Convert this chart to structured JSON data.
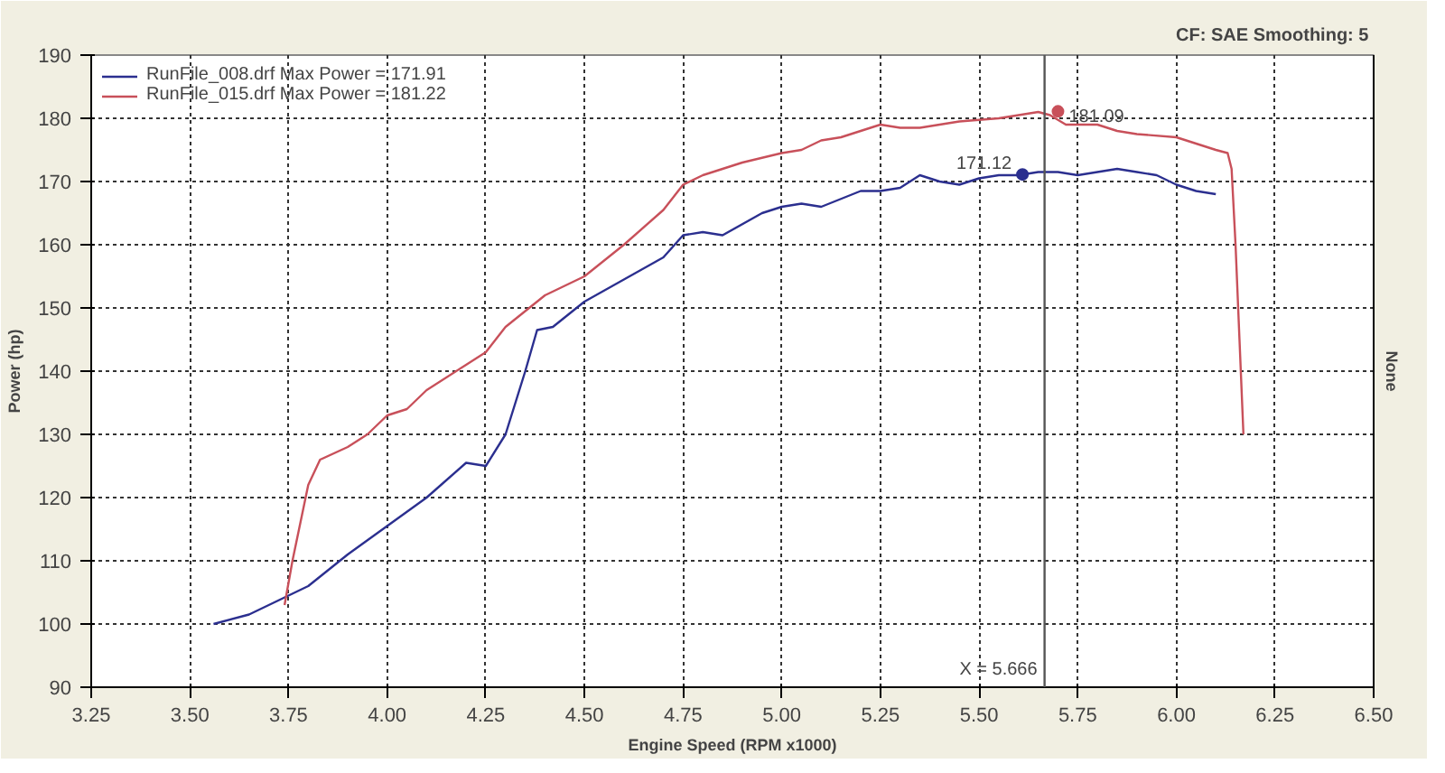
{
  "chart_data": {
    "type": "line",
    "xlabel": "Engine Speed (RPM x1000)",
    "ylabel": "Power (hp)",
    "y2label": "None",
    "xlim": [
      3.25,
      6.5
    ],
    "ylim": [
      90,
      190
    ],
    "xticks": [
      3.25,
      {
        "value": 3.5,
        "label": "3.50"
      },
      3.75,
      {
        "value": 4,
        "label": "4.00"
      },
      4.25,
      {
        "value": 4.5,
        "label": "4.50"
      },
      4.75,
      {
        "value": 5,
        "label": "5.00"
      },
      5.25,
      {
        "value": 5.5,
        "label": "5.50"
      },
      5.75,
      {
        "value": 6,
        "label": "6.00"
      },
      6.25,
      {
        "value": 6.5,
        "label": "6.50"
      }
    ],
    "yticks": [
      90,
      100,
      110,
      120,
      130,
      140,
      150,
      160,
      170,
      180,
      190
    ],
    "grid": true,
    "legend": "top left",
    "line_style": "solid",
    "marker": "none",
    "series": [
      {
        "name": "RunFile_008.drf Max Power = 171.91",
        "color": "#2b2f8f",
        "x": [
          3.56,
          3.65,
          3.75,
          3.8,
          3.9,
          4.0,
          4.1,
          4.2,
          4.25,
          4.3,
          4.35,
          4.38,
          4.42,
          4.5,
          4.6,
          4.7,
          4.75,
          4.8,
          4.85,
          4.95,
          5.0,
          5.05,
          5.1,
          5.2,
          5.25,
          5.3,
          5.35,
          5.4,
          5.45,
          5.5,
          5.55,
          5.6,
          5.65,
          5.7,
          5.75,
          5.8,
          5.85,
          5.9,
          5.95,
          6.0,
          6.05,
          6.1
        ],
        "values": [
          100,
          101.5,
          104.5,
          106,
          111,
          115.5,
          120,
          125.5,
          125,
          130,
          140,
          146.5,
          147,
          151,
          154.5,
          158,
          161.5,
          162,
          161.5,
          165,
          166,
          166.5,
          166,
          168.5,
          168.5,
          169,
          171,
          170,
          169.5,
          170.5,
          171,
          171,
          171.5,
          171.5,
          171,
          171.5,
          172,
          171.5,
          171,
          169.5,
          168.5,
          168
        ]
      },
      {
        "name": "RunFile_015.drf Max Power = 181.22",
        "color": "#c8505a",
        "x": [
          3.74,
          3.76,
          3.8,
          3.83,
          3.9,
          3.95,
          4.0,
          4.05,
          4.1,
          4.2,
          4.25,
          4.3,
          4.4,
          4.5,
          4.6,
          4.7,
          4.75,
          4.8,
          4.85,
          4.9,
          5.0,
          5.05,
          5.1,
          5.15,
          5.25,
          5.3,
          5.35,
          5.4,
          5.45,
          5.55,
          5.6,
          5.65,
          5.68,
          5.72,
          5.8,
          5.85,
          5.9,
          6.0,
          6.05,
          6.1,
          6.13,
          6.14,
          6.15,
          6.16,
          6.17
        ],
        "values": [
          103,
          110,
          122,
          126,
          128,
          130,
          133,
          134,
          137,
          141,
          143,
          147,
          152,
          155,
          160,
          165.5,
          169.5,
          171,
          172,
          173,
          174.5,
          175,
          176.5,
          177,
          179,
          178.5,
          178.5,
          179,
          179.5,
          180,
          180.5,
          181,
          180.5,
          179,
          179,
          178,
          177.5,
          177,
          176,
          175,
          174.5,
          172,
          160,
          145,
          130
        ]
      }
    ],
    "ref_lines": [
      {
        "axis": "x",
        "value": 5.666,
        "label": "X = 5.666",
        "color": "#555555"
      }
    ],
    "annotations": [
      "CF: SAE  Smoothing: 5",
      {
        "text": "181.09",
        "x": 5.7,
        "y": 181.09
      },
      {
        "text": "171.12",
        "x": 5.61,
        "y": 171.12
      }
    ]
  }
}
